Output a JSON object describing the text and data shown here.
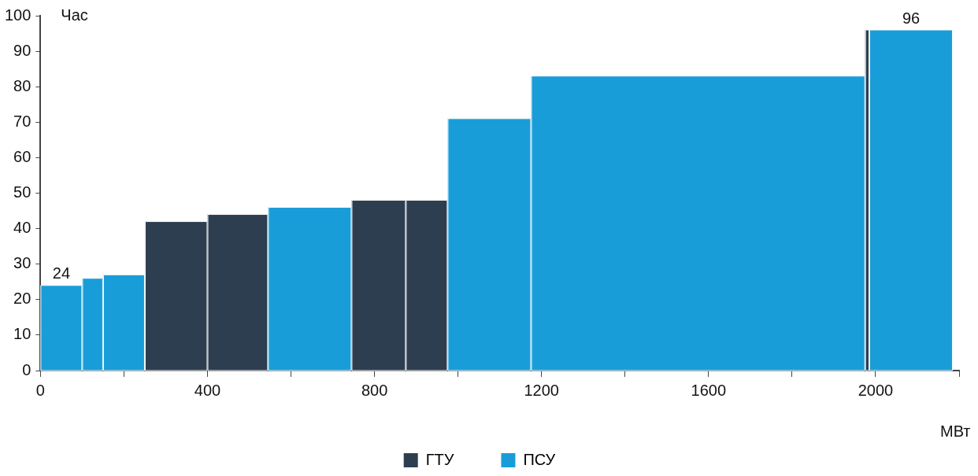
{
  "chart_data": {
    "type": "histogram",
    "xlabel": "МВт",
    "ylabel": "Час",
    "bins": [
      0,
      100,
      150,
      250,
      400,
      545,
      745,
      875,
      975,
      1175,
      1975,
      1985,
      2185
    ],
    "series": [
      {
        "name": "ГТУ",
        "color": "#2d3e50",
        "values": [
          null,
          null,
          null,
          42,
          44,
          null,
          48,
          48,
          null,
          null,
          96,
          null
        ]
      },
      {
        "name": "ПСУ",
        "color": "#199dd8",
        "values": [
          24,
          26,
          27,
          null,
          null,
          46,
          null,
          null,
          71,
          83,
          null,
          96
        ],
        "value_labels": [
          "24",
          null,
          null,
          null,
          null,
          null,
          null,
          null,
          null,
          null,
          null,
          "96"
        ]
      }
    ],
    "xlim": [
      0,
      2200
    ],
    "xticks": [
      0,
      {
        "value": 200,
        "label": null
      },
      400,
      {
        "value": 600,
        "label": null
      },
      800,
      {
        "value": 1000,
        "label": null
      },
      1200,
      {
        "value": 1400,
        "label": null
      },
      1600,
      {
        "value": 1800,
        "label": null
      },
      2000,
      {
        "value": 2200,
        "label": null
      }
    ],
    "ylim": [
      0,
      100
    ],
    "yticks": [
      0,
      10,
      20,
      30,
      40,
      50,
      60,
      70,
      80,
      90,
      100
    ],
    "grid": false,
    "legend": "bottom"
  }
}
